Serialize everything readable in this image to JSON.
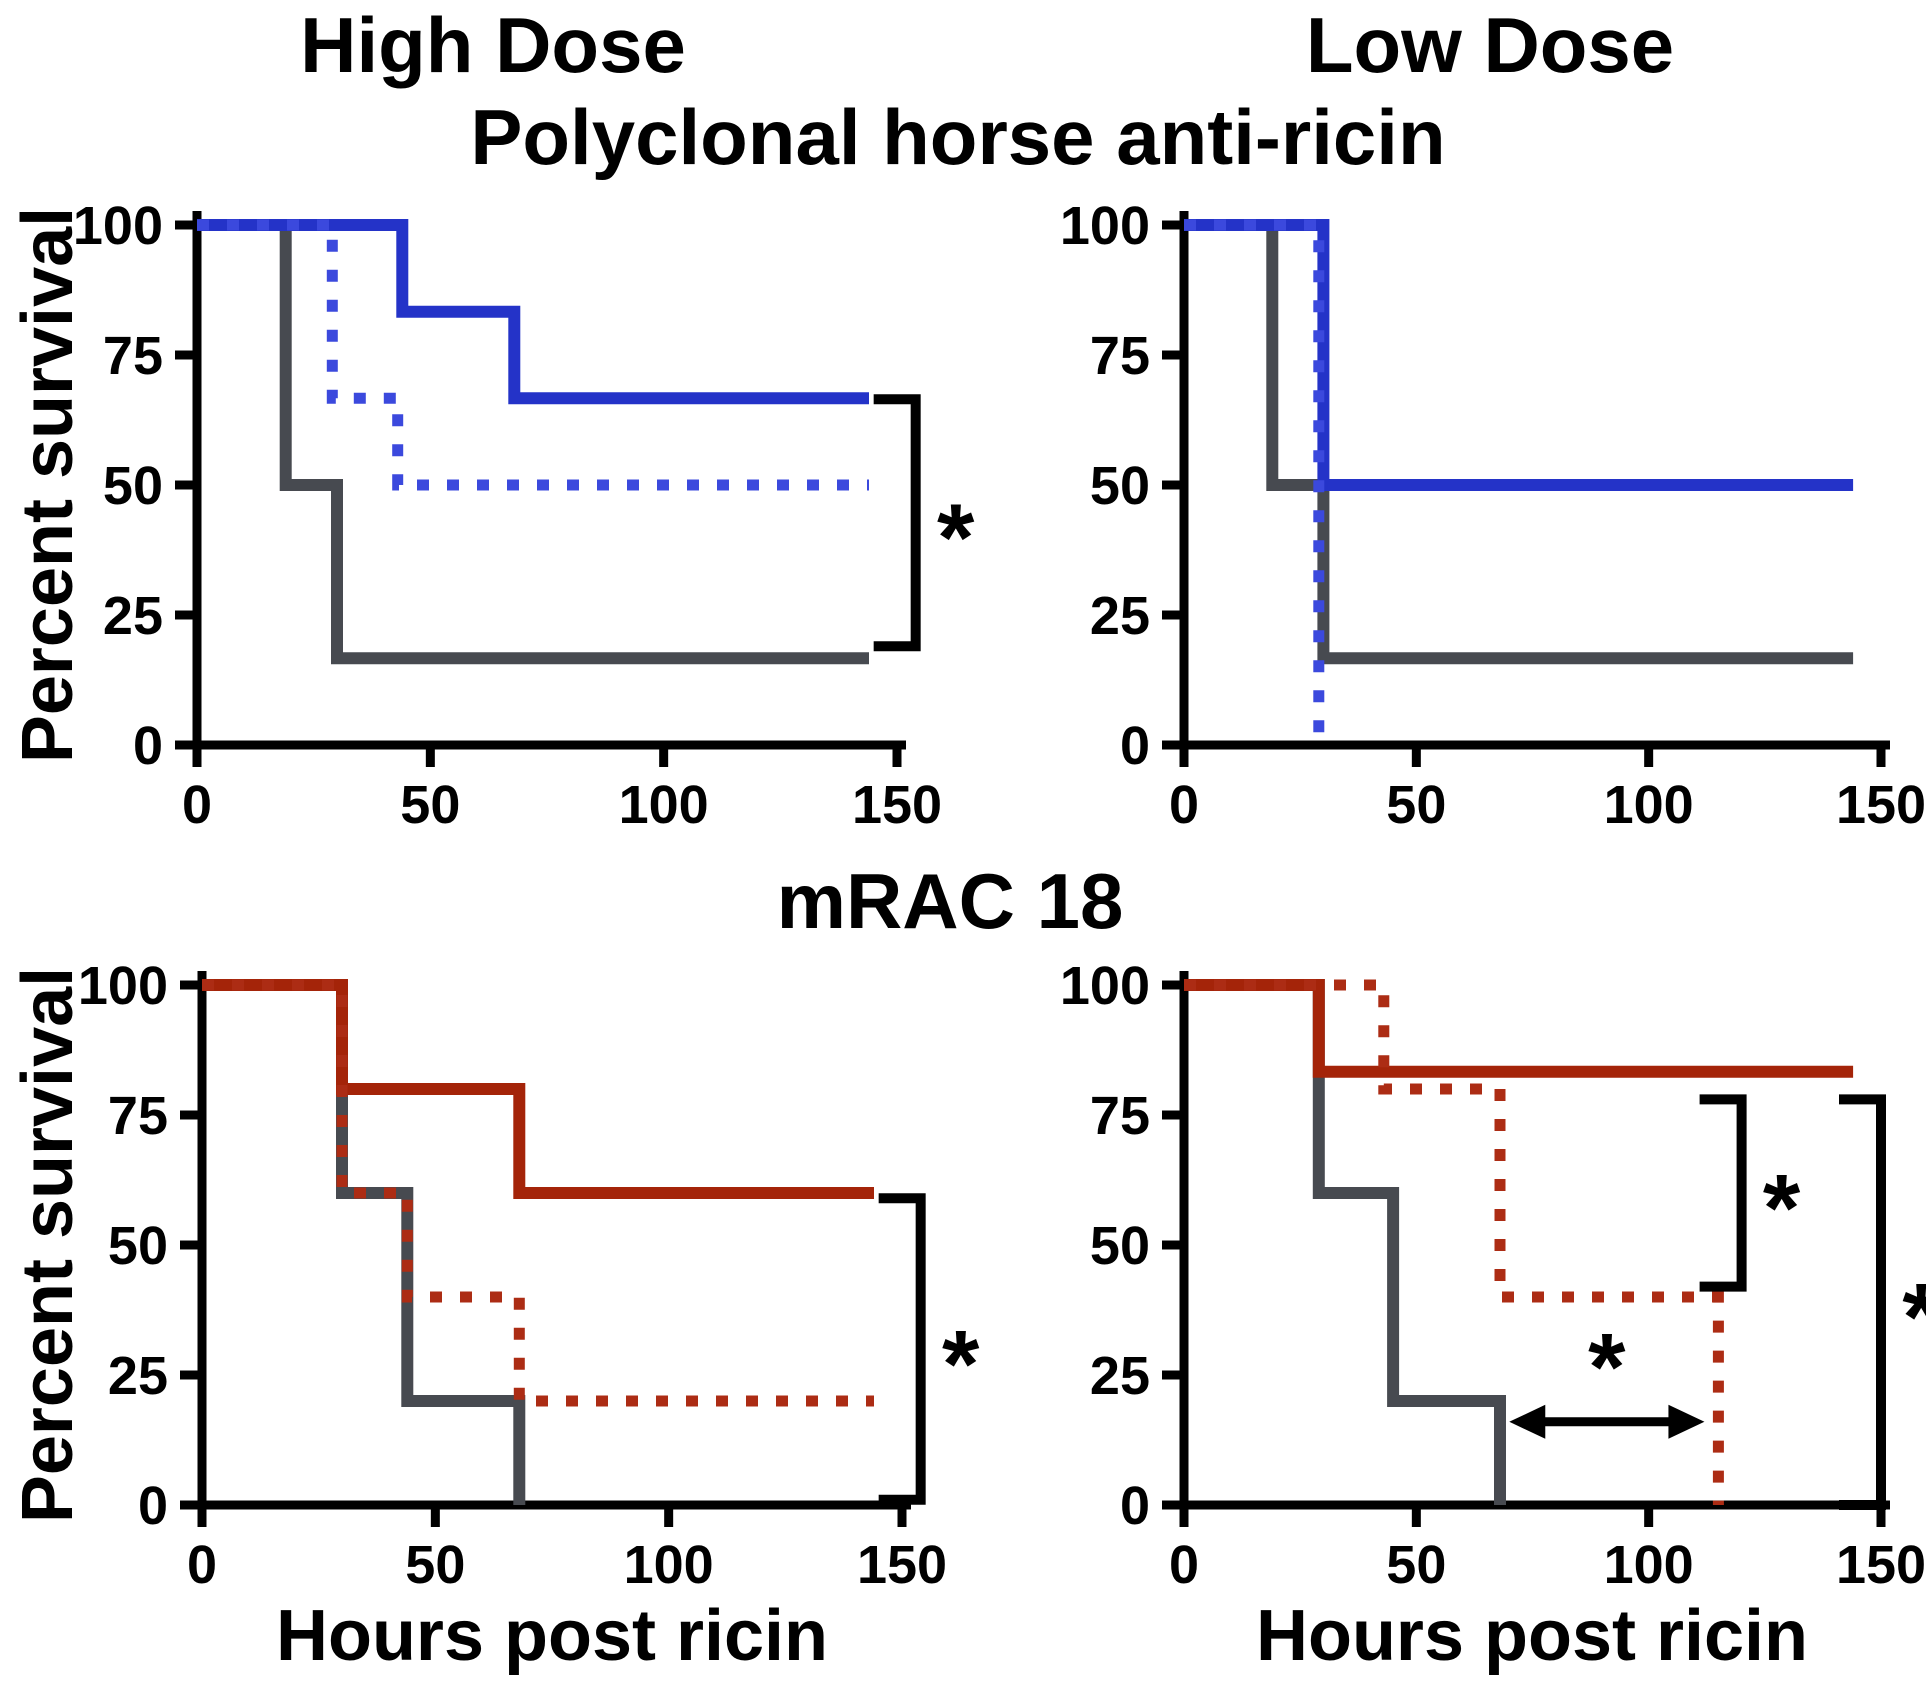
{
  "figure": {
    "col_titles": {
      "left": "High Dose",
      "right": "Low Dose"
    },
    "row_titles": {
      "top": "Polyclonal horse anti-ricin",
      "bottom": "mRAC 18"
    },
    "ylabel": "Percent survival",
    "xlabel": "Hours post ricin",
    "significance_marker": "*"
  },
  "colors": {
    "blue": "#2433c8",
    "blue_light": "#3b49dd",
    "red": "#a42409",
    "red_light": "#ac2c14",
    "gray": "#474a50",
    "axis": "#000000",
    "background": "#ffffff"
  },
  "chart_data": [
    {
      "id": "polyclonal-high-dose",
      "type": "line",
      "title": "Polyclonal horse anti-ricin — High Dose",
      "xlabel": "Hours post ricin",
      "ylabel": "Percent survival",
      "xlim": [
        0,
        150
      ],
      "ylim": [
        0,
        100
      ],
      "x_ticks": [
        0,
        50,
        100,
        150
      ],
      "y_ticks": [
        0,
        25,
        50,
        75,
        100
      ],
      "series": [
        {
          "name": "gray-solid-control",
          "color_key": "gray",
          "style": "solid",
          "points": [
            [
              0,
              100
            ],
            [
              19,
              100
            ],
            [
              19,
              50
            ],
            [
              30,
              50
            ],
            [
              30,
              16.7
            ],
            [
              144,
              16.7
            ]
          ]
        },
        {
          "name": "blue-solid",
          "color_key": "blue",
          "style": "solid",
          "points": [
            [
              0,
              100
            ],
            [
              44,
              100
            ],
            [
              44,
              83.3
            ],
            [
              68,
              83.3
            ],
            [
              68,
              66.7
            ],
            [
              144,
              66.7
            ]
          ]
        },
        {
          "name": "blue-dotted",
          "color_key": "blue_light",
          "style": "dotted",
          "points": [
            [
              0,
              100
            ],
            [
              29,
              100
            ],
            [
              29,
              66.7
            ],
            [
              43,
              66.7
            ],
            [
              43,
              50
            ],
            [
              144,
              50
            ]
          ]
        }
      ],
      "annotations": [
        {
          "type": "bracket",
          "x_hours": 154,
          "y_top_pct": 66.5,
          "y_bottom_pct": 19,
          "label": "*"
        }
      ]
    },
    {
      "id": "polyclonal-low-dose",
      "type": "line",
      "title": "Polyclonal horse anti-ricin — Low Dose",
      "xlabel": "Hours post ricin",
      "ylabel": "Percent survival",
      "xlim": [
        0,
        150
      ],
      "ylim": [
        0,
        100
      ],
      "x_ticks": [
        0,
        50,
        100,
        150
      ],
      "y_ticks": [
        0,
        25,
        50,
        75,
        100
      ],
      "series": [
        {
          "name": "gray-solid-control",
          "color_key": "gray",
          "style": "solid",
          "points": [
            [
              0,
              100
            ],
            [
              19,
              100
            ],
            [
              19,
              50
            ],
            [
              30,
              50
            ],
            [
              30,
              16.7
            ],
            [
              144,
              16.7
            ]
          ]
        },
        {
          "name": "blue-solid",
          "color_key": "blue",
          "style": "solid",
          "points": [
            [
              0,
              100
            ],
            [
              30,
              100
            ],
            [
              30,
              50
            ],
            [
              144,
              50
            ]
          ]
        },
        {
          "name": "blue-dotted",
          "color_key": "blue_light",
          "style": "dotted",
          "points": [
            [
              0,
              100
            ],
            [
              29,
              100
            ],
            [
              29,
              0
            ]
          ]
        }
      ],
      "annotations": []
    },
    {
      "id": "mrac18-high-dose",
      "type": "line",
      "title": "mRAC 18 — High Dose",
      "xlabel": "Hours post ricin",
      "ylabel": "Percent survival",
      "xlim": [
        0,
        150
      ],
      "ylim": [
        0,
        100
      ],
      "x_ticks": [
        0,
        50,
        100,
        150
      ],
      "y_ticks": [
        0,
        25,
        50,
        75,
        100
      ],
      "series": [
        {
          "name": "gray-solid-control",
          "color_key": "gray",
          "style": "solid",
          "points": [
            [
              0,
              100
            ],
            [
              30,
              100
            ],
            [
              30,
              60
            ],
            [
              44,
              60
            ],
            [
              44,
              20
            ],
            [
              68,
              20
            ],
            [
              68,
              0
            ]
          ]
        },
        {
          "name": "red-solid",
          "color_key": "red",
          "style": "solid",
          "points": [
            [
              0,
              100
            ],
            [
              30,
              100
            ],
            [
              30,
              80
            ],
            [
              68,
              80
            ],
            [
              68,
              60
            ],
            [
              144,
              60
            ]
          ]
        },
        {
          "name": "red-dotted",
          "color_key": "red_light",
          "style": "dotted",
          "points": [
            [
              0,
              100
            ],
            [
              30,
              100
            ],
            [
              30,
              60
            ],
            [
              44,
              60
            ],
            [
              44,
              40
            ],
            [
              68,
              40
            ],
            [
              68,
              20
            ],
            [
              144,
              20
            ]
          ]
        }
      ],
      "annotations": [
        {
          "type": "bracket",
          "x_hours": 154,
          "y_top_pct": 59,
          "y_bottom_pct": 1,
          "label": "*"
        }
      ]
    },
    {
      "id": "mrac18-low-dose",
      "type": "line",
      "title": "mRAC 18 — Low Dose",
      "xlabel": "Hours post ricin",
      "ylabel": "Percent survival",
      "xlim": [
        0,
        150
      ],
      "ylim": [
        0,
        100
      ],
      "x_ticks": [
        0,
        50,
        100,
        150
      ],
      "y_ticks": [
        0,
        25,
        50,
        75,
        100
      ],
      "series": [
        {
          "name": "gray-solid-control",
          "color_key": "gray",
          "style": "solid",
          "points": [
            [
              0,
              100
            ],
            [
              29,
              100
            ],
            [
              29,
              60
            ],
            [
              45,
              60
            ],
            [
              45,
              20
            ],
            [
              68,
              20
            ],
            [
              68,
              0
            ]
          ]
        },
        {
          "name": "red-solid",
          "color_key": "red",
          "style": "solid",
          "points": [
            [
              0,
              100
            ],
            [
              29,
              100
            ],
            [
              29,
              83.3
            ],
            [
              144,
              83.3
            ]
          ]
        },
        {
          "name": "red-dotted",
          "color_key": "red_light",
          "style": "dotted",
          "points": [
            [
              0,
              100
            ],
            [
              43,
              100
            ],
            [
              43,
              80
            ],
            [
              68,
              80
            ],
            [
              68,
              40
            ],
            [
              115,
              40
            ],
            [
              115,
              0
            ]
          ]
        }
      ],
      "annotations": [
        {
          "type": "bracket",
          "x_hours": 120,
          "y_top_pct": 78,
          "y_bottom_pct": 42,
          "label": "*"
        },
        {
          "type": "bracket",
          "x_hours": 150,
          "y_top_pct": 78,
          "y_bottom_pct": 0,
          "label": "*"
        },
        {
          "type": "arrow",
          "x_from_hours": 70,
          "x_to_hours": 112,
          "y_pct": 16,
          "label": "*"
        }
      ]
    }
  ]
}
